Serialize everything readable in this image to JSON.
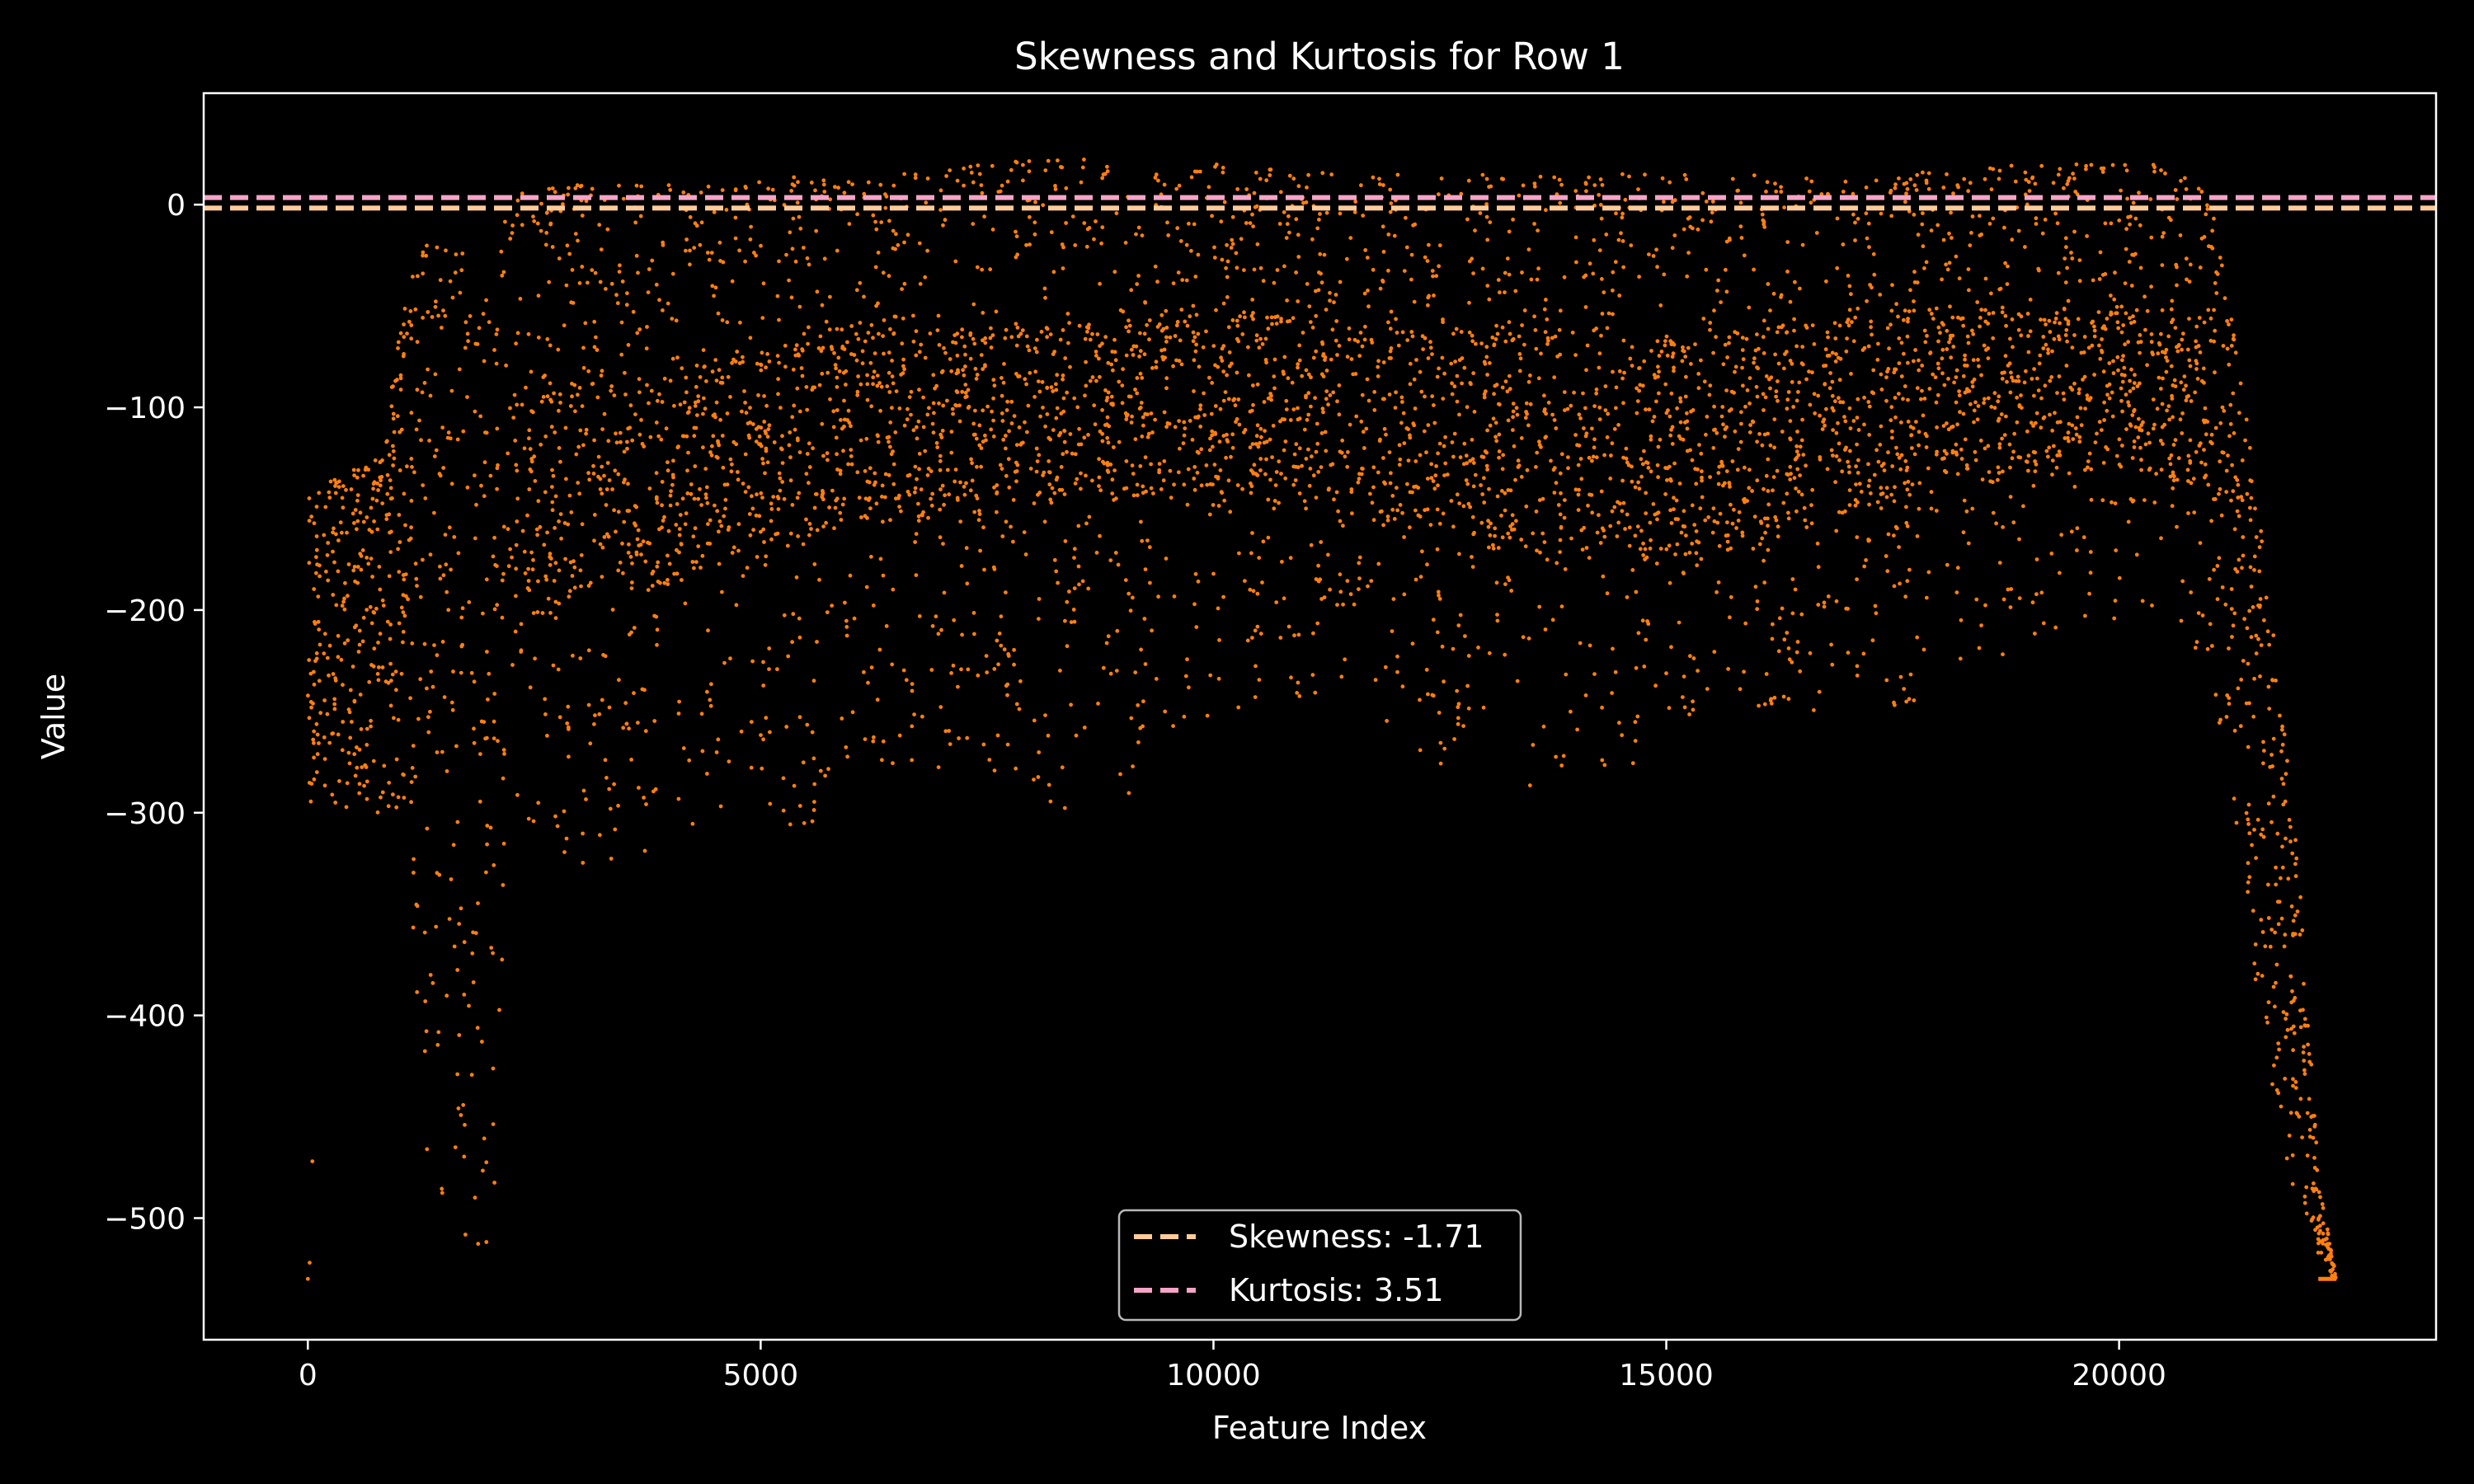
{
  "chart_data": {
    "type": "scatter",
    "title": "Skewness and Kurtosis for Row 1",
    "xlabel": "Feature Index",
    "ylabel": "Value",
    "xlim": [
      -1150,
      23500
    ],
    "ylim": [
      -560,
      55
    ],
    "xticks": [
      0,
      5000,
      10000,
      15000,
      20000
    ],
    "xtick_labels": [
      "0",
      "5000",
      "10000",
      "15000",
      "20000"
    ],
    "yticks": [
      0,
      -100,
      -200,
      -300,
      -400,
      -500
    ],
    "ytick_labels": [
      "0",
      "−100",
      "−200",
      "−300",
      "−400",
      "−500"
    ],
    "grid": false,
    "legend_position": "lower-center",
    "colors": {
      "background": "#000000",
      "points": "#ff7f0e",
      "skewness_line": "#ffcc99",
      "kurtosis_line": "#f5a3c7",
      "text": "#ffffff"
    },
    "reference_lines": [
      {
        "name": "Skewness: -1.71",
        "y": -1.71,
        "color": "#ffcc99",
        "style": "dashed"
      },
      {
        "name": "Kurtosis: 3.51",
        "y": 3.51,
        "color": "#f5a3c7",
        "style": "dashed"
      }
    ],
    "series": [
      {
        "color": "#ff7f0e",
        "approx_points": 22400,
        "envelope": {
          "x": [
            0,
            300,
            800,
            1100,
            1300,
            1600,
            1900,
            2050,
            2200,
            3000,
            4500,
            5600,
            5800,
            6500,
            7500,
            8700,
            9600,
            10000,
            11500,
            12500,
            13500,
            14500,
            16000,
            17500,
            19000,
            20500,
            21000,
            21300,
            21600,
            22000,
            22200,
            22400
          ],
          "upper": [
            -145,
            -135,
            -125,
            -40,
            -20,
            -20,
            -30,
            -60,
            5,
            10,
            10,
            15,
            10,
            15,
            20,
            25,
            15,
            20,
            15,
            15,
            15,
            15,
            15,
            15,
            20,
            20,
            5,
            -70,
            -170,
            -330,
            -480,
            -530
          ],
          "lower": [
            -300,
            -300,
            -300,
            -300,
            -480,
            -520,
            -520,
            -515,
            -300,
            -330,
            -310,
            -310,
            -280,
            -280,
            -280,
            -305,
            -270,
            -250,
            -240,
            -280,
            -290,
            -280,
            -250,
            -250,
            -220,
            -200,
            -240,
            -310,
            -420,
            -500,
            -525,
            -530
          ]
        },
        "dense_band": {
          "x": [
            2200,
            4000,
            6000,
            8000,
            10000,
            12000,
            14000,
            16000,
            18000,
            20000,
            21000
          ],
          "upper": [
            -90,
            -80,
            -60,
            -60,
            -50,
            -60,
            -60,
            -60,
            -50,
            -50,
            -70
          ],
          "lower": [
            -200,
            -190,
            -160,
            -150,
            -140,
            -160,
            -180,
            -170,
            -140,
            -130,
            -140
          ]
        },
        "outliers": [
          {
            "x": 0,
            "y": -530
          },
          {
            "x": 20,
            "y": -522
          },
          {
            "x": 50,
            "y": -472
          },
          {
            "x": 100,
            "y": -280
          }
        ]
      }
    ]
  }
}
